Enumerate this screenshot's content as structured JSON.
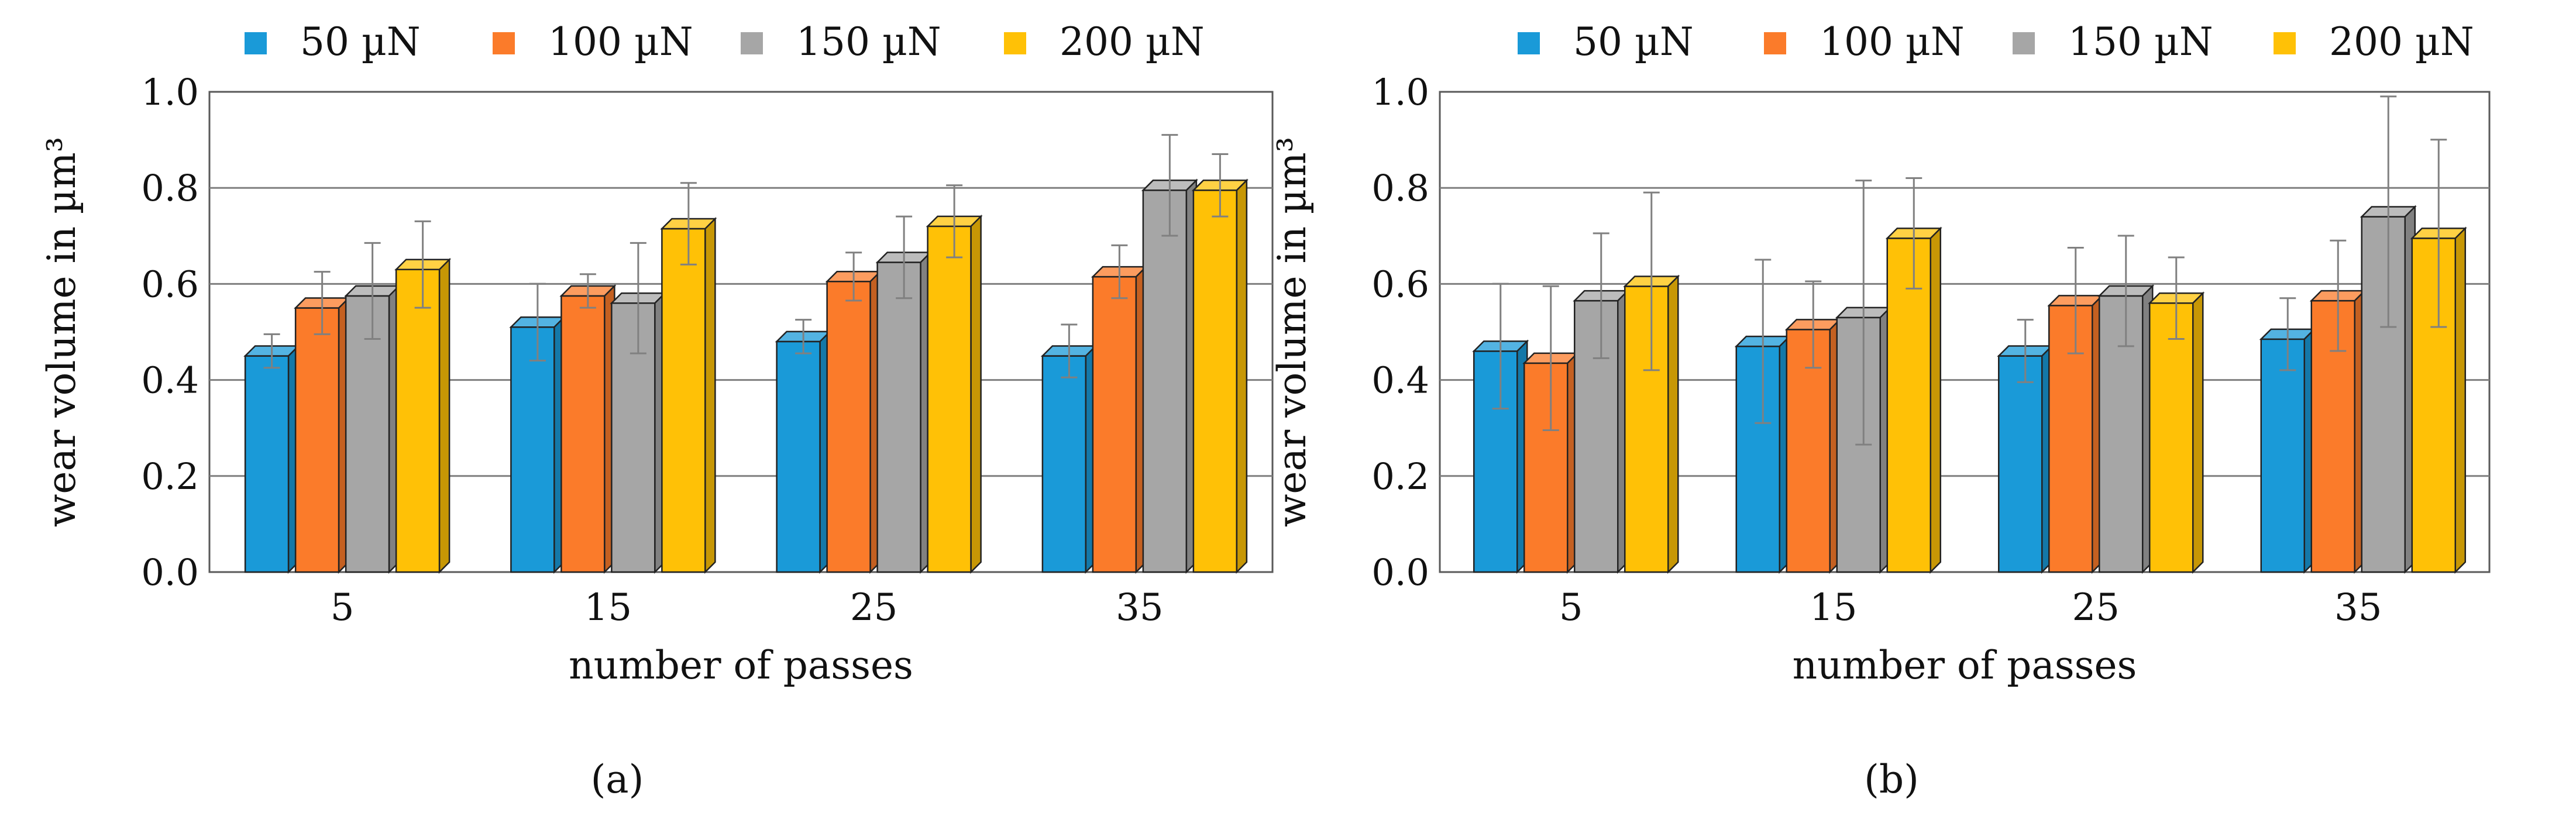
{
  "figure": {
    "panels_caption": [
      "(a)",
      "(b)"
    ]
  },
  "chart_data": [
    {
      "type": "bar",
      "panel_label": "a",
      "xlabel": "number of passes",
      "ylabel": "wear volume in µm³",
      "ylim": [
        0,
        1
      ],
      "yticks": [
        "0.0",
        "0.2",
        "0.4",
        "0.6",
        "0.8",
        "1.0"
      ],
      "categories": [
        "5",
        "15",
        "25",
        "35"
      ],
      "legend_position": "top",
      "series": [
        {
          "name": "50 µN",
          "color": "#1a9ad8",
          "values": [
            0.45,
            0.51,
            0.48,
            0.45
          ],
          "errors": [
            0.035,
            0.08,
            0.035,
            0.055
          ]
        },
        {
          "name": "100 µN",
          "color": "#fb7b2a",
          "values": [
            0.55,
            0.575,
            0.605,
            0.615
          ],
          "errors": [
            0.065,
            0.035,
            0.05,
            0.055
          ]
        },
        {
          "name": "150 µN",
          "color": "#a6a6a6",
          "values": [
            0.575,
            0.56,
            0.645,
            0.795
          ],
          "errors": [
            0.1,
            0.115,
            0.085,
            0.105
          ]
        },
        {
          "name": "200 µN",
          "color": "#ffc106",
          "values": [
            0.63,
            0.715,
            0.72,
            0.795
          ],
          "errors": [
            0.09,
            0.085,
            0.075,
            0.065
          ]
        }
      ]
    },
    {
      "type": "bar",
      "panel_label": "b",
      "xlabel": "number of passes",
      "ylabel": "wear volume in µm³",
      "ylim": [
        0,
        1
      ],
      "yticks": [
        "0.0",
        "0.2",
        "0.4",
        "0.6",
        "0.8",
        "1.0"
      ],
      "categories": [
        "5",
        "15",
        "25",
        "35"
      ],
      "legend_position": "top",
      "series": [
        {
          "name": "50 µN",
          "color": "#1a9ad8",
          "values": [
            0.46,
            0.47,
            0.45,
            0.485
          ],
          "errors": [
            0.13,
            0.17,
            0.065,
            0.075
          ]
        },
        {
          "name": "100 µN",
          "color": "#fb7b2a",
          "values": [
            0.435,
            0.505,
            0.555,
            0.565
          ],
          "errors": [
            0.15,
            0.09,
            0.11,
            0.115
          ]
        },
        {
          "name": "150 µN",
          "color": "#a6a6a6",
          "values": [
            0.565,
            0.53,
            0.575,
            0.74
          ],
          "errors": [
            0.13,
            0.275,
            0.115,
            0.24
          ]
        },
        {
          "name": "200 µN",
          "color": "#ffc106",
          "values": [
            0.595,
            0.695,
            0.56,
            0.695
          ],
          "errors": [
            0.185,
            0.115,
            0.085,
            0.195
          ]
        }
      ]
    }
  ]
}
